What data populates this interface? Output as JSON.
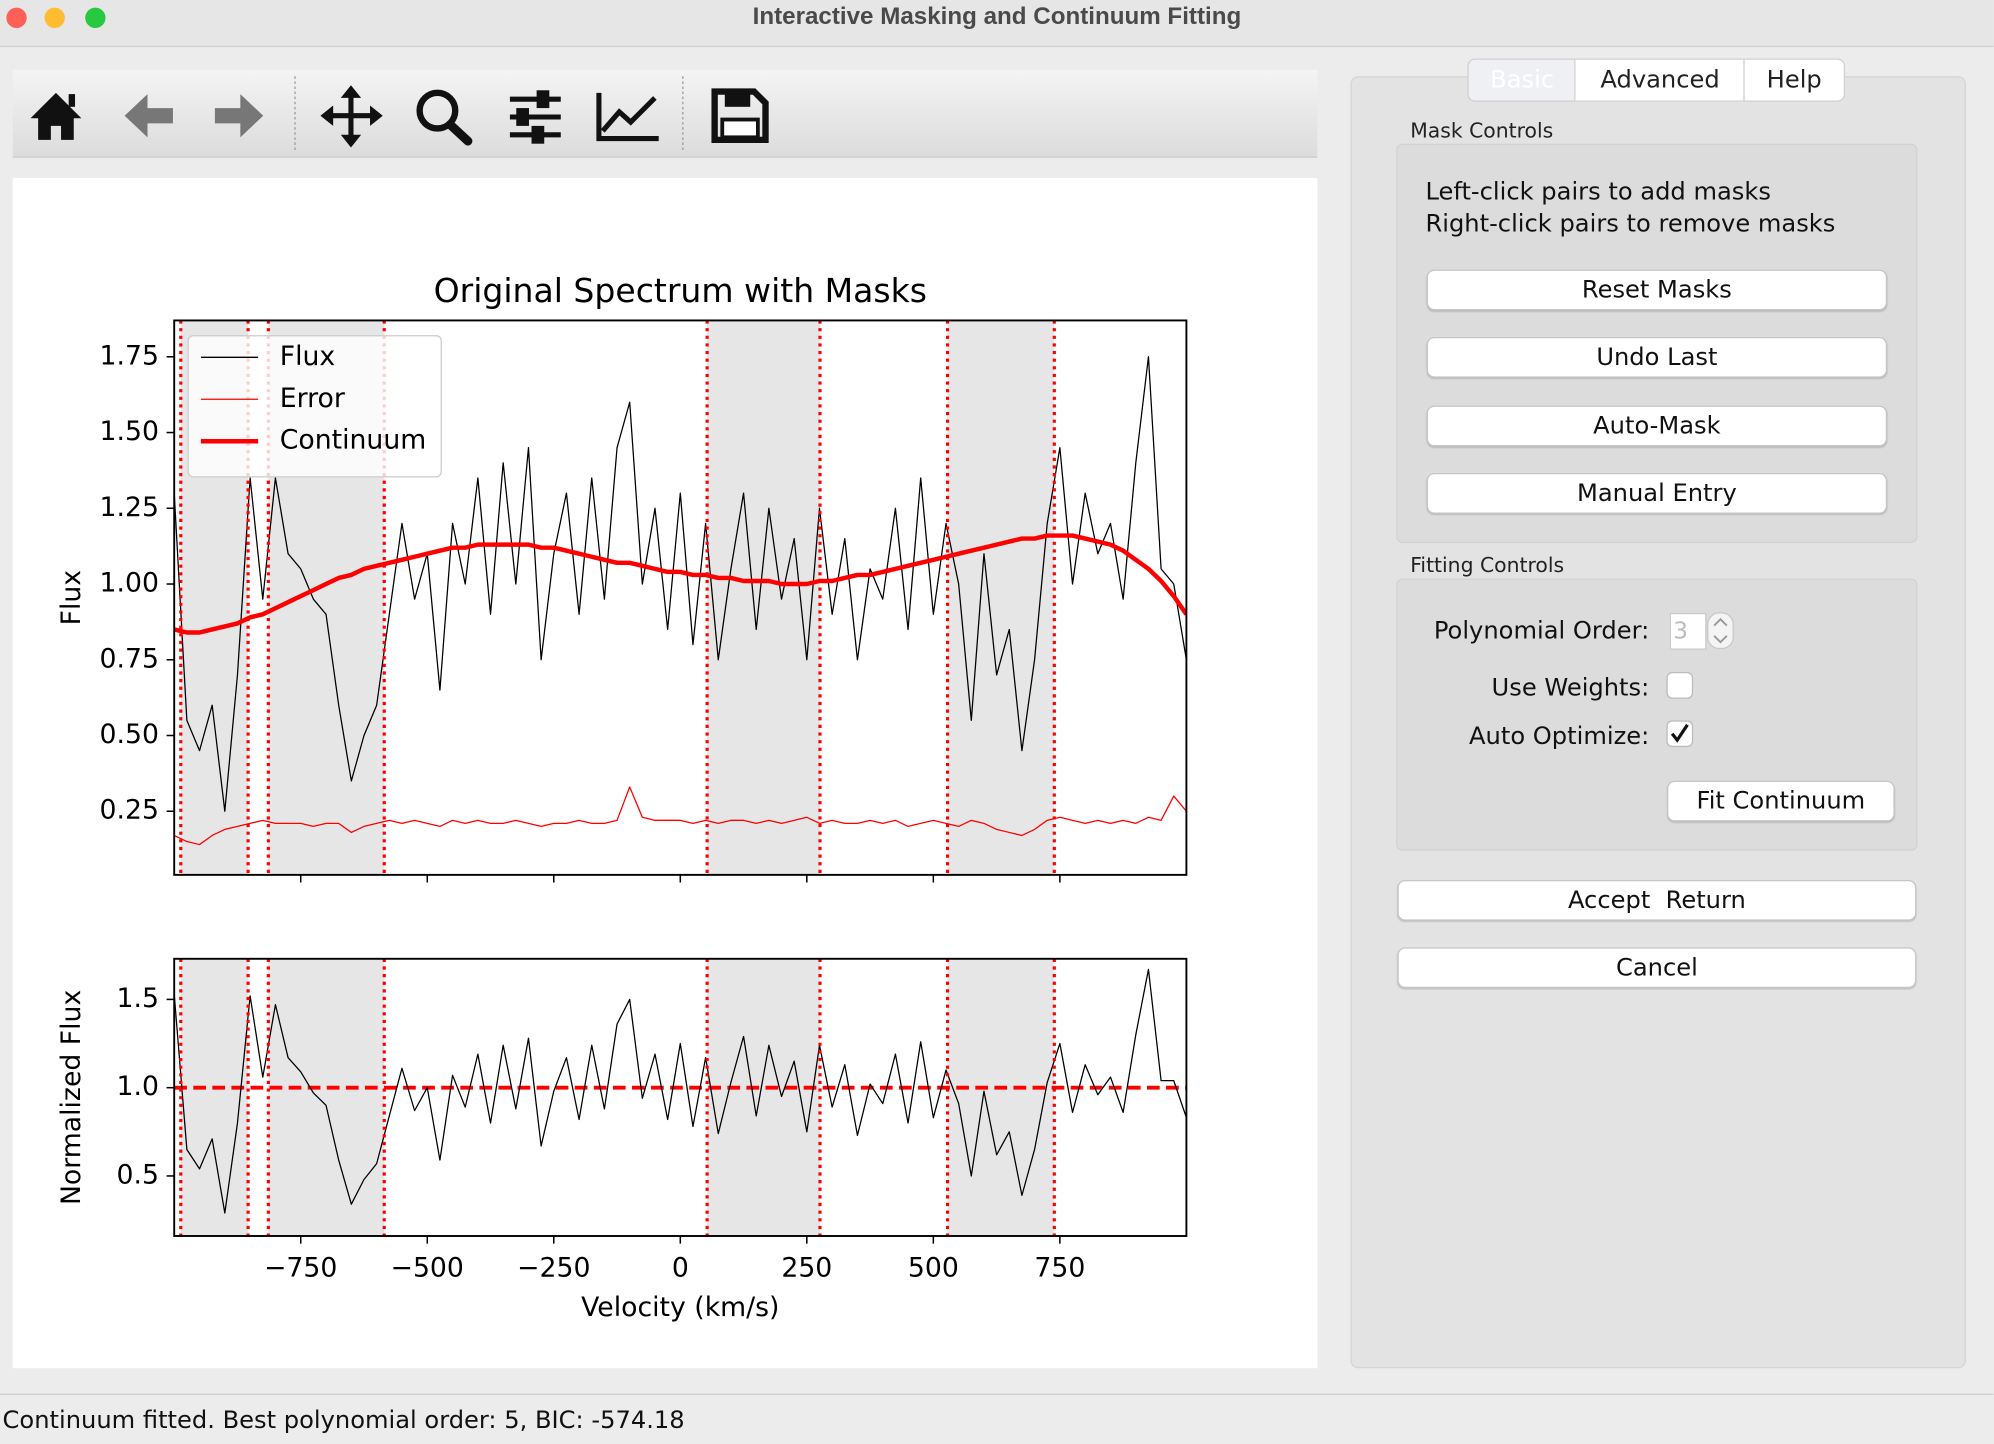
{
  "window": {
    "title": "Interactive Masking and Continuum Fitting"
  },
  "tabs": [
    "Basic",
    "Advanced",
    "Help"
  ],
  "mask_controls": {
    "title": "Mask Controls",
    "instructions": [
      "Left-click pairs to add masks",
      "Right-click pairs to remove masks"
    ],
    "buttons": [
      "Reset Masks",
      "Undo Last",
      "Auto-Mask",
      "Manual Entry"
    ]
  },
  "fitting_controls": {
    "title": "Fitting Controls",
    "polynomial_order_label": "Polynomial Order:",
    "polynomial_order": 3,
    "use_weights_label": "Use Weights:",
    "use_weights": false,
    "auto_optimize_label": "Auto Optimize:",
    "auto_optimize": true,
    "fit_button": "Fit Continuum"
  },
  "buttons": [
    "Accept  Return",
    "Cancel"
  ],
  "status": "Continuum fitted. Best polynomial order: 5, BIC: -574.18",
  "chart_data": [
    {
      "type": "line",
      "title": "Original Spectrum with Masks",
      "y_label": "Flux",
      "x": [
        -1000,
        -975,
        -950,
        -925,
        -900,
        -875,
        -850,
        -825,
        -800,
        -775,
        -750,
        -725,
        -700,
        -675,
        -650,
        -625,
        -600,
        -575,
        -550,
        -525,
        -500,
        -475,
        -450,
        -425,
        -400,
        -375,
        -350,
        -325,
        -300,
        -275,
        -250,
        -225,
        -200,
        -175,
        -150,
        -125,
        -100,
        -75,
        -50,
        -25,
        0,
        25,
        50,
        75,
        100,
        125,
        150,
        175,
        200,
        225,
        250,
        275,
        300,
        325,
        350,
        375,
        400,
        425,
        450,
        475,
        500,
        525,
        550,
        575,
        600,
        625,
        650,
        675,
        700,
        725,
        750,
        775,
        800,
        825,
        850,
        875,
        900,
        925,
        950,
        975,
        1000
      ],
      "series": [
        {
          "name": "Flux",
          "color": "#000000",
          "line_width": 1,
          "values": [
            1.3,
            0.55,
            0.45,
            0.6,
            0.25,
            0.7,
            1.35,
            0.95,
            1.35,
            1.1,
            1.05,
            0.95,
            0.9,
            0.6,
            0.35,
            0.5,
            0.6,
            0.9,
            1.2,
            0.95,
            1.1,
            0.65,
            1.2,
            1.0,
            1.35,
            0.9,
            1.4,
            1.0,
            1.45,
            0.75,
            1.1,
            1.3,
            0.9,
            1.35,
            0.95,
            1.45,
            1.6,
            1.0,
            1.25,
            0.85,
            1.3,
            0.8,
            1.2,
            0.75,
            1.05,
            1.3,
            0.85,
            1.25,
            0.95,
            1.15,
            0.75,
            1.25,
            0.9,
            1.15,
            0.75,
            1.05,
            0.95,
            1.25,
            0.85,
            1.35,
            0.9,
            1.2,
            1.0,
            0.55,
            1.1,
            0.7,
            0.85,
            0.45,
            0.75,
            1.2,
            1.45,
            1.0,
            1.3,
            1.1,
            1.2,
            0.95,
            1.4,
            1.75,
            1.05,
            1.0,
            0.75
          ]
        },
        {
          "name": "Error",
          "color": "#ff0000",
          "line_width": 1,
          "values": [
            0.17,
            0.15,
            0.14,
            0.17,
            0.19,
            0.2,
            0.21,
            0.22,
            0.21,
            0.21,
            0.21,
            0.2,
            0.21,
            0.21,
            0.18,
            0.2,
            0.21,
            0.22,
            0.21,
            0.22,
            0.21,
            0.2,
            0.22,
            0.21,
            0.22,
            0.21,
            0.21,
            0.22,
            0.21,
            0.2,
            0.21,
            0.21,
            0.22,
            0.21,
            0.21,
            0.22,
            0.33,
            0.23,
            0.22,
            0.22,
            0.22,
            0.21,
            0.22,
            0.21,
            0.22,
            0.22,
            0.21,
            0.22,
            0.21,
            0.22,
            0.23,
            0.21,
            0.22,
            0.21,
            0.21,
            0.22,
            0.21,
            0.22,
            0.2,
            0.21,
            0.22,
            0.21,
            0.2,
            0.22,
            0.21,
            0.19,
            0.18,
            0.17,
            0.19,
            0.22,
            0.23,
            0.22,
            0.21,
            0.22,
            0.21,
            0.22,
            0.21,
            0.23,
            0.22,
            0.3,
            0.25
          ]
        },
        {
          "name": "Continuum",
          "color": "#ff0000",
          "line_width": 3.5,
          "values": [
            0.85,
            0.84,
            0.84,
            0.85,
            0.86,
            0.87,
            0.89,
            0.9,
            0.92,
            0.94,
            0.96,
            0.98,
            1.0,
            1.02,
            1.03,
            1.05,
            1.06,
            1.07,
            1.08,
            1.09,
            1.1,
            1.11,
            1.12,
            1.12,
            1.13,
            1.13,
            1.13,
            1.13,
            1.13,
            1.12,
            1.12,
            1.11,
            1.1,
            1.09,
            1.08,
            1.07,
            1.07,
            1.06,
            1.05,
            1.04,
            1.04,
            1.03,
            1.03,
            1.02,
            1.02,
            1.01,
            1.01,
            1.01,
            1.0,
            1.0,
            1.0,
            1.01,
            1.01,
            1.02,
            1.03,
            1.03,
            1.04,
            1.05,
            1.06,
            1.07,
            1.08,
            1.09,
            1.1,
            1.11,
            1.12,
            1.13,
            1.14,
            1.15,
            1.15,
            1.16,
            1.16,
            1.16,
            1.15,
            1.14,
            1.13,
            1.11,
            1.08,
            1.05,
            1.01,
            0.96,
            0.9
          ]
        }
      ],
      "masks": [
        [
          -987,
          -854
        ],
        [
          -814,
          -585
        ],
        [
          53,
          276
        ],
        [
          528,
          739
        ]
      ],
      "xlim": [
        -1000,
        1000
      ],
      "ylim": [
        0.04,
        1.87
      ],
      "xticks": [
        -750,
        -500,
        -250,
        0,
        250,
        500,
        750
      ],
      "show_xtick_labels": false,
      "yticks": [
        0.25,
        {
          "value": 0.5,
          "label": "0.50"
        },
        0.75,
        {
          "value": 1.0,
          "label": "1.00"
        },
        1.25,
        {
          "value": 1.5,
          "label": "1.50"
        },
        1.75
      ],
      "legend": "upper left"
    },
    {
      "type": "line",
      "y_label": "Normalized Flux",
      "x_label": "Velocity (km/s)",
      "x": [
        -1000,
        -975,
        -950,
        -925,
        -900,
        -875,
        -850,
        -825,
        -800,
        -775,
        -750,
        -725,
        -700,
        -675,
        -650,
        -625,
        -600,
        -575,
        -550,
        -525,
        -500,
        -475,
        -450,
        -425,
        -400,
        -375,
        -350,
        -325,
        -300,
        -275,
        -250,
        -225,
        -200,
        -175,
        -150,
        -125,
        -100,
        -75,
        -50,
        -25,
        0,
        25,
        50,
        75,
        100,
        125,
        150,
        175,
        200,
        225,
        250,
        275,
        300,
        325,
        350,
        375,
        400,
        425,
        450,
        475,
        500,
        525,
        550,
        575,
        600,
        625,
        650,
        675,
        700,
        725,
        750,
        775,
        800,
        825,
        850,
        875,
        900,
        925,
        950,
        975,
        1000
      ],
      "series": [
        {
          "color": "#000000",
          "line_width": 1,
          "values": [
            1.53,
            0.65,
            0.54,
            0.71,
            0.29,
            0.8,
            1.52,
            1.06,
            1.47,
            1.17,
            1.09,
            0.97,
            0.9,
            0.59,
            0.34,
            0.48,
            0.57,
            0.84,
            1.11,
            0.87,
            1.0,
            0.59,
            1.07,
            0.89,
            1.19,
            0.8,
            1.24,
            0.88,
            1.28,
            0.67,
            0.98,
            1.17,
            0.82,
            1.24,
            0.88,
            1.36,
            1.5,
            0.94,
            1.19,
            0.82,
            1.25,
            0.78,
            1.17,
            0.74,
            1.03,
            1.29,
            0.84,
            1.24,
            0.95,
            1.15,
            0.75,
            1.24,
            0.89,
            1.13,
            0.73,
            1.02,
            0.91,
            1.19,
            0.8,
            1.26,
            0.83,
            1.1,
            0.91,
            0.5,
            0.98,
            0.62,
            0.75,
            0.39,
            0.65,
            1.03,
            1.25,
            0.86,
            1.13,
            0.96,
            1.06,
            0.86,
            1.3,
            1.67,
            1.04,
            1.04,
            0.83
          ]
        }
      ],
      "reference_line": {
        "value": 1,
        "color": "#ff0000"
      },
      "masks": [
        [
          -987,
          -854
        ],
        [
          -814,
          -585
        ],
        [
          53,
          276
        ],
        [
          528,
          739
        ]
      ],
      "xlim": [
        -1000,
        1000
      ],
      "ylim": [
        0.16,
        1.73
      ],
      "xticks": [
        {
          "value": -750,
          "label": "−750"
        },
        {
          "value": -500,
          "label": "−500"
        },
        {
          "value": -250,
          "label": "−250"
        },
        0,
        250,
        500,
        750
      ],
      "show_xtick_labels": true,
      "yticks": [
        0.5,
        {
          "value": 1.0,
          "label": "1.0"
        },
        1.5
      ]
    }
  ]
}
